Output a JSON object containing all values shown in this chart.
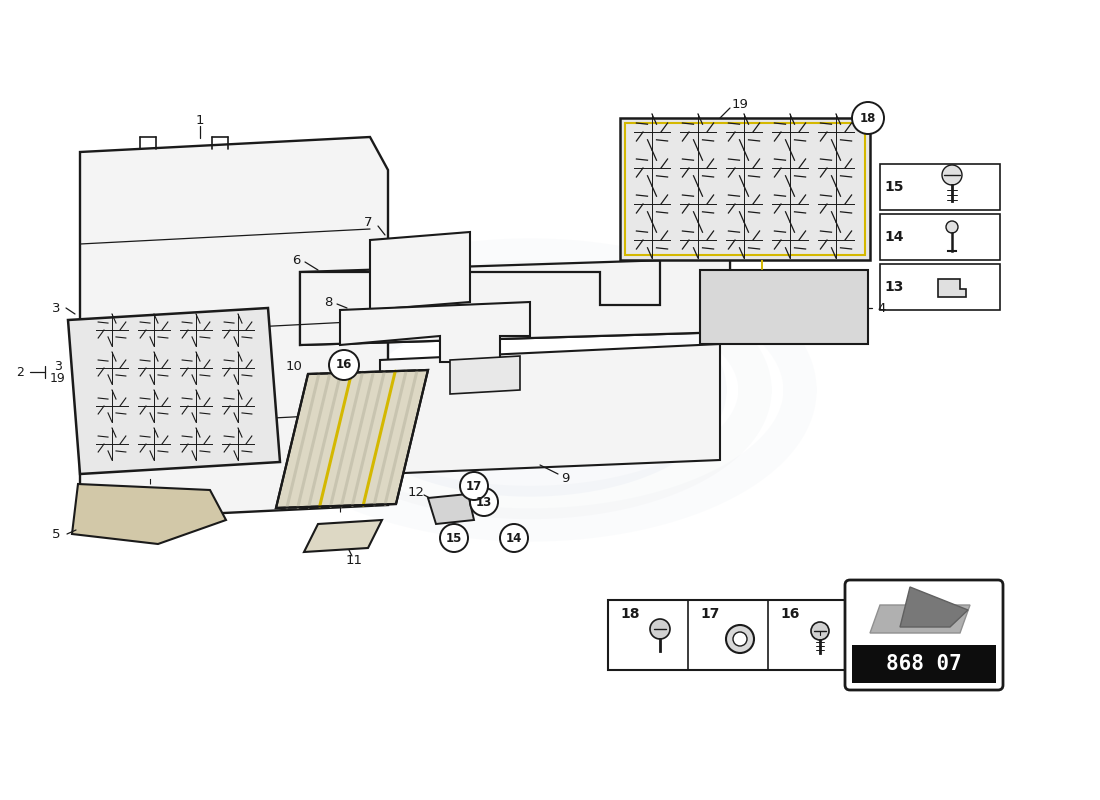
{
  "bg_color": "#ffffff",
  "lc": "#1a1a1a",
  "yc": "#d4b800",
  "lf": "#f4f4f4",
  "mf": "#e8e8e8",
  "cf": "#d2c8a8",
  "sf": "#ddd8c4",
  "part_number": "868 07",
  "wm_color": "#c0ccd8"
}
